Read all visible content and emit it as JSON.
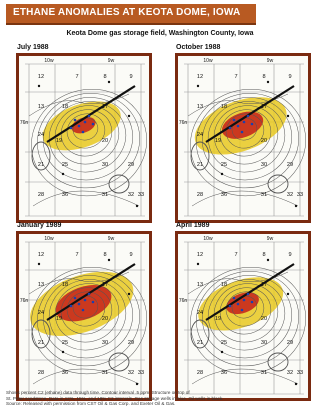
{
  "header": {
    "banner": "ETHANE ANOMALIES AT KEOTA DOME, IOWA"
  },
  "figure_title": "Keota Dome gas storage field, Washington County, Iowa",
  "panels": [
    {
      "label": "July 1988",
      "anomaly_level": 0.45,
      "range_labels": [
        "10w",
        "9w"
      ],
      "township_label": "76n",
      "sections": [
        "12",
        "7",
        "8",
        "9",
        "13",
        "18",
        "17",
        "24",
        "19",
        "20",
        "21",
        "25",
        "30",
        "29",
        "28",
        "36",
        "31",
        "32",
        "33"
      ]
    },
    {
      "label": "October 1988",
      "anomaly_level": 0.75,
      "range_labels": [
        "10w",
        "9w"
      ],
      "township_label": "76n",
      "sections": [
        "12",
        "7",
        "8",
        "9",
        "13",
        "18",
        "17",
        "24",
        "19",
        "20",
        "21",
        "25",
        "30",
        "29",
        "28",
        "36",
        "31",
        "32",
        "33"
      ]
    },
    {
      "label": "January 1989",
      "anomaly_level": 1.0,
      "range_labels": [
        "10w",
        "9w"
      ],
      "township_label": "76n",
      "sections": [
        "12",
        "7",
        "8",
        "9",
        "13",
        "18",
        "17",
        "24",
        "19",
        "20",
        "21",
        "25",
        "30",
        "29",
        "28",
        "36",
        "31",
        "32",
        "33"
      ]
    },
    {
      "label": "April 1989",
      "anomaly_level": 0.6,
      "range_labels": [
        "10w",
        "9w"
      ],
      "township_label": "76n",
      "sections": [
        "12",
        "7",
        "8",
        "9",
        "13",
        "18",
        "17",
        "24",
        "19",
        "20",
        "21",
        "25",
        "30",
        "29",
        "28",
        "36",
        "31",
        "32",
        "33"
      ]
    }
  ],
  "caption_lines": [
    "Shows percent C2 (ethane) data through time. Contour interval .5 ppm. Structure on top of",
    "St. Peter sandstone. Data in 12%, 15%, and 18% C2 intervals. Gas storage wells in blue. Oil wells in black.",
    "Source: Released with permission from CST Oil & Gas Corp. and Exeter Oil & Gas."
  ],
  "colors": {
    "banner": "#b85a22",
    "frame": "#7a2a10",
    "anomaly_low": "#e8c820",
    "anomaly_high": "#c8281c",
    "contour": "#555555"
  }
}
